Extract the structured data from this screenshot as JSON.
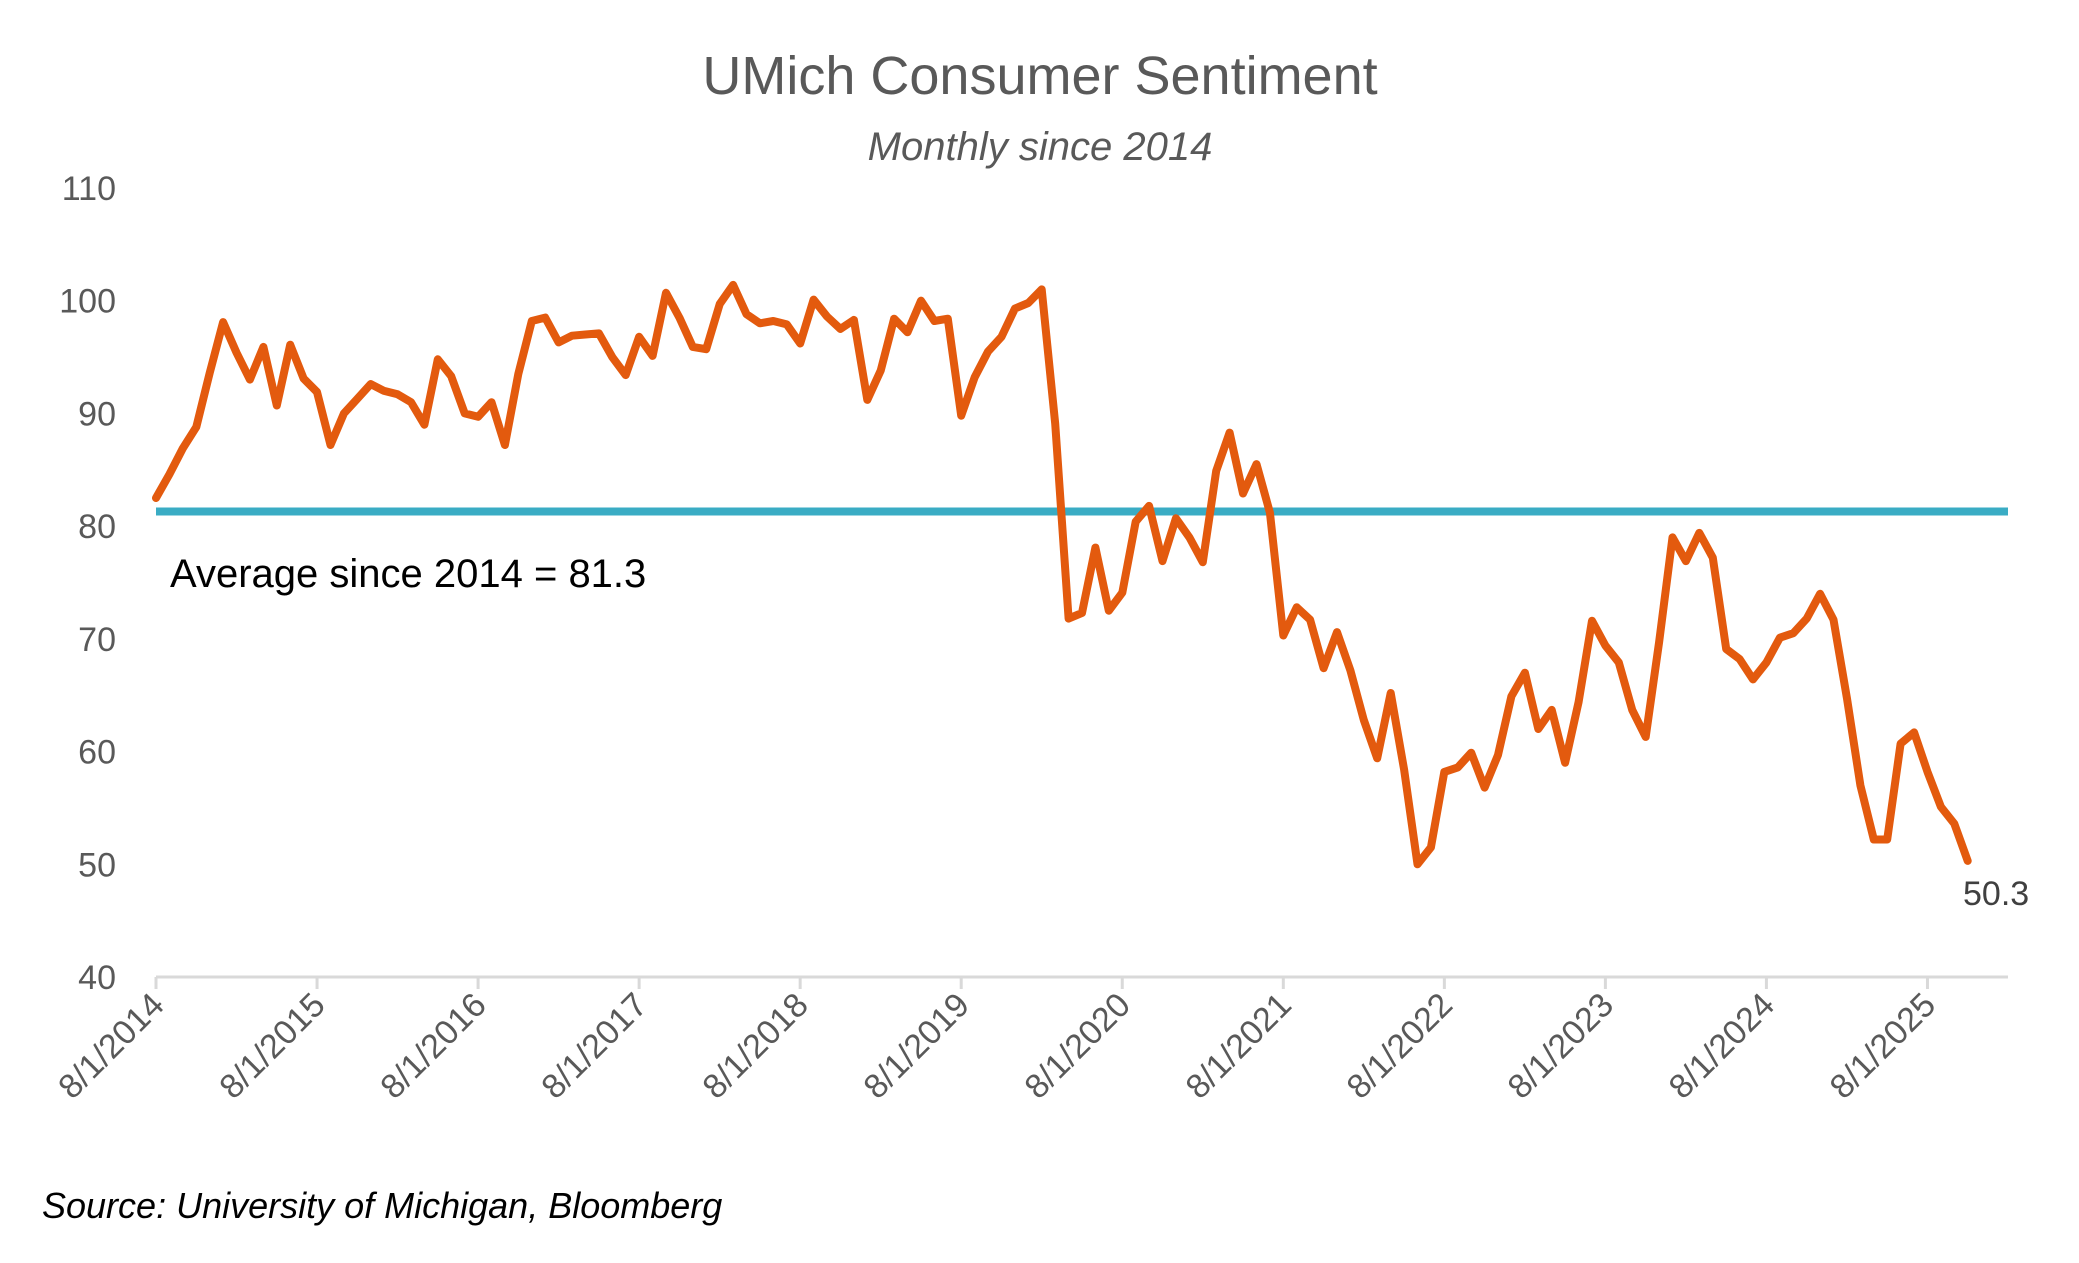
{
  "chart_data": {
    "type": "line",
    "title": "UMich Consumer Sentiment",
    "subtitle": "Monthly since 2014",
    "xlabel": "",
    "ylabel": "",
    "ylim": [
      40,
      110
    ],
    "yticks": [
      40,
      50,
      60,
      70,
      80,
      90,
      100,
      110
    ],
    "xticks": [
      "8/1/2014",
      "8/1/2015",
      "8/1/2016",
      "8/1/2017",
      "8/1/2018",
      "8/1/2019",
      "8/1/2020",
      "8/1/2021",
      "8/1/2022",
      "8/1/2023",
      "8/1/2024",
      "8/1/2025"
    ],
    "x_start": "8/1/2014",
    "x_end": "2/1/2026",
    "series": [
      {
        "name": "UMich Consumer Sentiment",
        "color": "#E35A0E",
        "start": "8/1/2014",
        "frequency": "monthly",
        "values": [
          82.5,
          84.6,
          86.9,
          88.8,
          93.6,
          98.1,
          95.4,
          93.0,
          95.9,
          90.7,
          96.1,
          93.1,
          91.9,
          87.2,
          90.0,
          91.3,
          92.6,
          92.0,
          91.7,
          91.0,
          89.0,
          94.8,
          93.3,
          90.0,
          89.7,
          91.0,
          87.2,
          93.5,
          98.2,
          98.5,
          96.3,
          96.9,
          97.0,
          97.1,
          95.0,
          93.4,
          96.8,
          95.1,
          100.7,
          98.5,
          95.9,
          95.7,
          99.7,
          101.4,
          98.8,
          98.0,
          98.2,
          97.9,
          96.2,
          100.1,
          98.6,
          97.5,
          98.3,
          91.2,
          93.8,
          98.4,
          97.2,
          100.0,
          98.2,
          98.4,
          89.8,
          93.2,
          95.5,
          96.8,
          99.3,
          99.8,
          101.0,
          89.1,
          71.8,
          72.3,
          78.1,
          72.5,
          74.1,
          80.4,
          81.8,
          76.9,
          80.7,
          79.0,
          76.8,
          84.9,
          88.3,
          82.9,
          85.5,
          81.2,
          70.3,
          72.8,
          71.7,
          67.4,
          70.6,
          67.2,
          62.8,
          59.4,
          65.2,
          58.4,
          50.0,
          51.5,
          58.2,
          58.6,
          59.9,
          56.8,
          59.7,
          64.9,
          67.0,
          62.0,
          63.7,
          59.0,
          64.4,
          71.6,
          69.4,
          67.9,
          63.7,
          61.3,
          69.7,
          79.0,
          76.9,
          79.4,
          77.2,
          69.1,
          68.2,
          66.4,
          67.9,
          70.1,
          70.5,
          71.8,
          74.0,
          71.7,
          64.7,
          57.0,
          52.2,
          52.2,
          60.7,
          61.7,
          58.2,
          55.1,
          53.6,
          50.3
        ]
      }
    ],
    "reference_line": {
      "label": "Average since 2014 = 81.3",
      "value": 81.3,
      "color": "#3AACC4"
    },
    "endpoint_label": "50.3",
    "source": "Source: University of Michigan, Bloomberg",
    "legend": "none",
    "grid": false
  }
}
